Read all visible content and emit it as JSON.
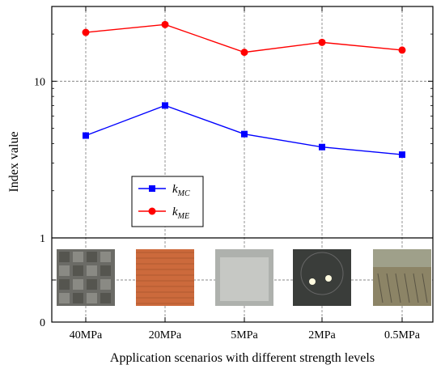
{
  "chart_data": {
    "type": "line",
    "xlabel": "Application scenarios with different strength levels",
    "ylabel": "Index value",
    "categories": [
      "40MPa",
      "20MPa",
      "5MPa",
      "2MPa",
      "0.5MPa"
    ],
    "yscale": "log",
    "ylim": [
      1,
      30
    ],
    "yticks": [
      "1",
      "10"
    ],
    "lower_panel_yticks": [
      "0",
      "1"
    ],
    "grid": true,
    "legend_position": "center-left",
    "series": [
      {
        "name": "k_MC",
        "name_main": "k",
        "name_sub": "MC",
        "color": "#0000ff",
        "marker": "square",
        "values": [
          4.5,
          7.0,
          4.6,
          3.8,
          3.4
        ]
      },
      {
        "name": "k_ME",
        "name_main": "k",
        "name_sub": "ME",
        "color": "#ff0000",
        "marker": "circle",
        "values": [
          20.5,
          23.0,
          15.3,
          17.7,
          15.8
        ]
      }
    ]
  },
  "photos": [
    {
      "category": "40MPa",
      "depicts": "stacked concrete cubes",
      "color": "#6b6b66"
    },
    {
      "category": "20MPa",
      "depicts": "brick wall",
      "color": "#cc6a3c"
    },
    {
      "category": "5MPa",
      "depicts": "light grey block",
      "color": "#aeb1ad"
    },
    {
      "category": "2MPa",
      "depicts": "tunnel face with lights",
      "color": "#3a3d3a"
    },
    {
      "category": "0.5MPa",
      "depicts": "excavation site",
      "color": "#8c8466"
    }
  ]
}
